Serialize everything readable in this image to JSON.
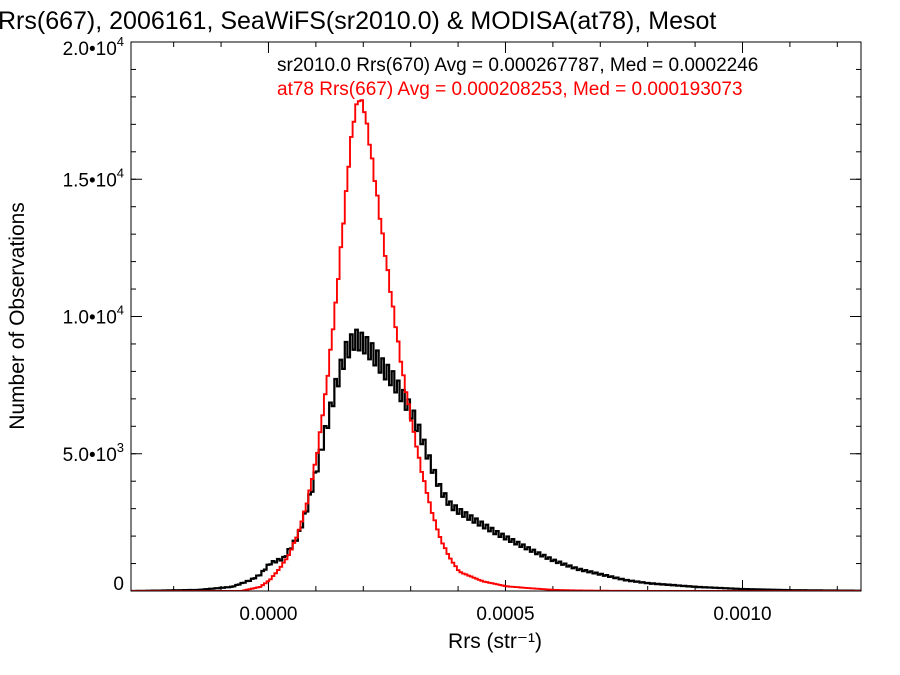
{
  "chart_data": {
    "type": "line",
    "title": "Rrs(667), 2006161, SeaWiFS(sr2010.0) & MODISA(at78), Mesot",
    "xlabel": "Rrs (str⁻¹)",
    "ylabel": "Number of Observations",
    "xlim": [
      -0.00029,
      0.00125
    ],
    "ylim": [
      0,
      20000
    ],
    "x_ticks": [
      0.0,
      0.0005,
      0.001
    ],
    "x_tick_labels": [
      "0.0000",
      "0.0005",
      "0.0010"
    ],
    "y_ticks": [
      0,
      5000,
      10000,
      15000,
      20000
    ],
    "y_tick_labels": [
      {
        "mantissa": "0",
        "exponent": ""
      },
      {
        "mantissa": "5.0•10",
        "exponent": "3"
      },
      {
        "mantissa": "1.0•10",
        "exponent": "4"
      },
      {
        "mantissa": "1.5•10",
        "exponent": "4"
      },
      {
        "mantissa": "2.0•10",
        "exponent": "4"
      }
    ],
    "minor_x_step": 0.0001,
    "minor_y_step": 1000,
    "grid": false,
    "legend_placement": "top-right",
    "series": [
      {
        "name": "sr2010.0 Rrs(670)",
        "legend_text": "sr2010.0 Rrs(670) Avg = 0.000267787, Med = 0.0002246",
        "color": "#000000",
        "x": [
          -0.00029,
          -0.00015,
          -8e-05,
          -4e-05,
          -2e-05,
          0.0,
          3e-05,
          6e-05,
          8e-05,
          0.0001,
          0.00012,
          0.00014,
          0.00016,
          0.00018,
          0.0002,
          0.00022,
          0.00024,
          0.00026,
          0.00028,
          0.0003,
          0.00032,
          0.00034,
          0.00036,
          0.00038,
          0.0004,
          0.00044,
          0.00048,
          0.00055,
          0.0006,
          0.00065,
          0.0007,
          0.00075,
          0.0008,
          0.0009,
          0.001,
          0.0011,
          0.00125
        ],
        "y": [
          0,
          40,
          150,
          400,
          600,
          1000,
          1200,
          2000,
          3100,
          4500,
          6000,
          7500,
          8700,
          9200,
          9000,
          8600,
          8100,
          7700,
          7100,
          6500,
          5600,
          4600,
          3700,
          3150,
          2900,
          2500,
          2100,
          1500,
          1100,
          800,
          600,
          400,
          280,
          150,
          70,
          30,
          10
        ]
      },
      {
        "name": "at78 Rrs(667)",
        "legend_text": "at78 Rrs(667) Avg = 0.000208253, Med = 0.000193073",
        "color": "#ff0000",
        "x": [
          -0.00029,
          -6e-05,
          -2e-05,
          0.0,
          2e-05,
          4e-05,
          6e-05,
          8e-05,
          0.0001,
          0.00012,
          0.00014,
          0.00016,
          0.00017,
          0.00018,
          0.00019,
          0.0002,
          0.00021,
          0.00022,
          0.00024,
          0.00026,
          0.00028,
          0.0003,
          0.00032,
          0.00034,
          0.00036,
          0.00038,
          0.0004,
          0.00045,
          0.0005,
          0.00055,
          0.0006,
          0.00065,
          0.0007,
          0.0008,
          0.00125
        ],
        "y": [
          0,
          0,
          150,
          400,
          800,
          1300,
          2100,
          3300,
          5000,
          7500,
          10600,
          14300,
          16200,
          17500,
          18000,
          17500,
          16400,
          15200,
          12700,
          10300,
          8000,
          6100,
          4400,
          3000,
          1900,
          1200,
          700,
          350,
          170,
          100,
          40,
          20,
          10,
          0,
          0
        ]
      }
    ]
  }
}
